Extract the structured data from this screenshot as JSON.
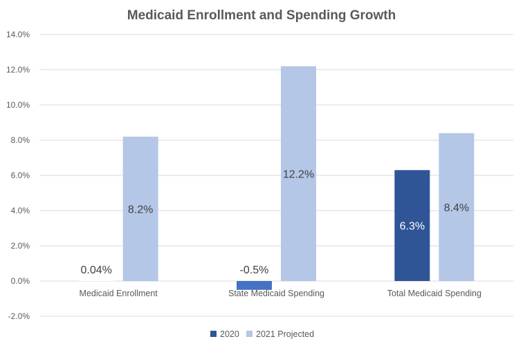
{
  "chart_data": {
    "type": "bar",
    "title": "Medicaid Enrollment and Spending Growth",
    "categories": [
      "Medicaid Enrollment",
      "State Medicaid Spending",
      "Total Medicaid Spending"
    ],
    "series": [
      {
        "name": "2020",
        "values": [
          0.04,
          -0.5,
          6.3
        ],
        "labels": [
          "0.04%",
          "-0.5%",
          "6.3%"
        ],
        "color": "#2f5597"
      },
      {
        "name": "2021 Projected",
        "values": [
          8.2,
          12.2,
          8.4
        ],
        "labels": [
          "8.2%",
          "12.2%",
          "8.4%"
        ],
        "color": "#b4c7e7"
      }
    ],
    "ylim": [
      -2,
      14
    ],
    "yticks": [
      -2,
      0,
      2,
      4,
      6,
      8,
      10,
      12,
      14
    ],
    "ytick_labels": [
      "-2.0%",
      "0.0%",
      "2.0%",
      "4.0%",
      "6.0%",
      "8.0%",
      "10.0%",
      "12.0%",
      "14.0%"
    ],
    "grid": true,
    "legend_position": "bottom",
    "colors": {
      "series_2020_bar": [
        "#ffffff",
        "#4472c4",
        "#2f5597"
      ],
      "label_on_dark": "#ffffff",
      "label_default": "#404040"
    }
  }
}
